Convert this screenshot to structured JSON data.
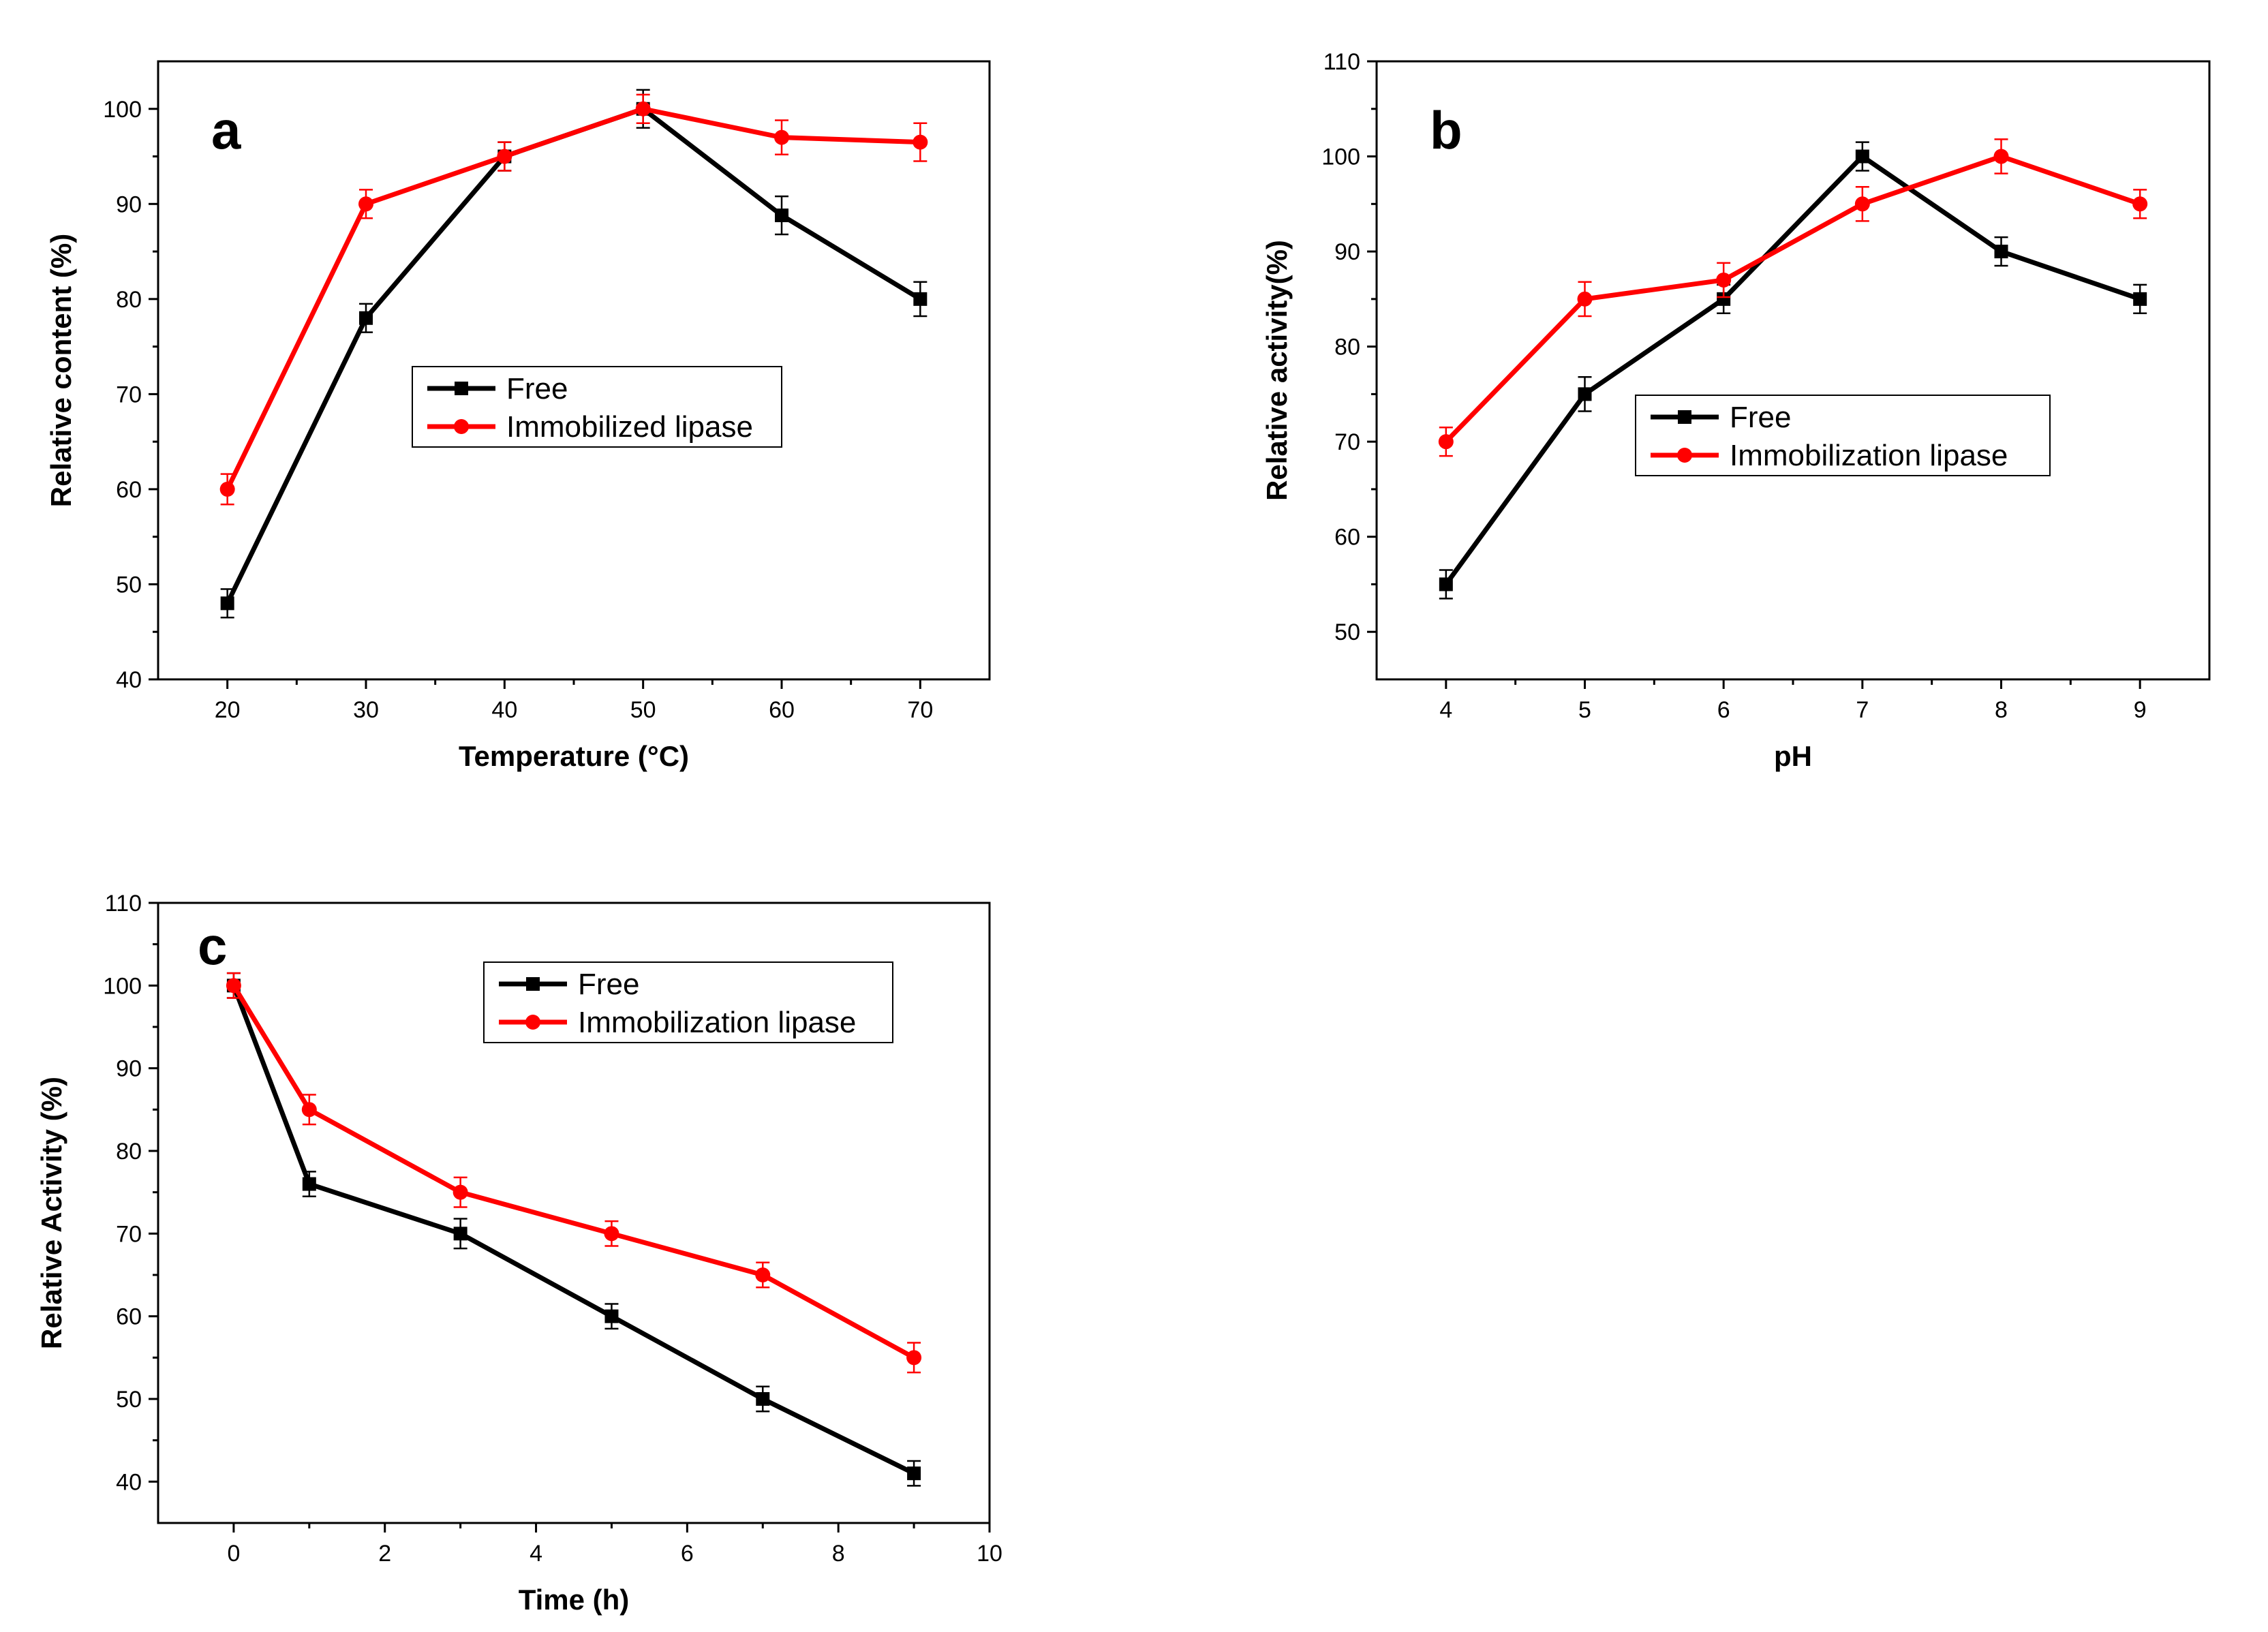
{
  "chart_data": [
    {
      "type": "line",
      "panel_label": "a",
      "xlabel": "Temperature (°C)",
      "ylabel": "Relative content (%)",
      "xlim": [
        15,
        75
      ],
      "ylim": [
        40,
        105
      ],
      "xticks": [
        20,
        30,
        40,
        50,
        60,
        70
      ],
      "yticks": [
        40,
        50,
        60,
        70,
        80,
        90,
        100
      ],
      "legend_position": "center",
      "grid": false,
      "x": [
        20,
        30,
        40,
        50,
        60,
        70
      ],
      "series": [
        {
          "name": "Free",
          "color": "#000000",
          "marker": "square",
          "values": [
            48,
            78,
            95,
            100,
            88.8,
            80
          ],
          "errors": [
            1.5,
            1.5,
            1.5,
            2,
            2,
            1.8
          ]
        },
        {
          "name": "Immobilized lipase",
          "color": "#ff0000",
          "marker": "circle",
          "values": [
            60,
            90,
            95,
            100,
            97,
            96.5
          ],
          "errors": [
            1.6,
            1.5,
            1.5,
            1.5,
            1.8,
            2
          ]
        }
      ]
    },
    {
      "type": "line",
      "panel_label": "b",
      "xlabel": "pH",
      "ylabel": "Relative activity(%)",
      "xlim": [
        3.5,
        9.5
      ],
      "ylim": [
        45,
        110
      ],
      "xticks": [
        4,
        5,
        6,
        7,
        8,
        9
      ],
      "yticks": [
        50,
        60,
        70,
        80,
        90,
        100,
        110
      ],
      "legend_position": "center-right",
      "grid": false,
      "x": [
        4,
        5,
        6,
        7,
        8,
        9
      ],
      "series": [
        {
          "name": "Free",
          "color": "#000000",
          "marker": "square",
          "values": [
            55,
            75,
            85,
            100,
            90,
            85
          ],
          "errors": [
            1.5,
            1.8,
            1.5,
            1.5,
            1.5,
            1.5
          ]
        },
        {
          "name": "Immobilization lipase",
          "color": "#ff0000",
          "marker": "circle",
          "values": [
            70,
            85,
            87,
            95,
            100,
            95
          ],
          "errors": [
            1.5,
            1.8,
            1.8,
            1.8,
            1.8,
            1.5
          ]
        }
      ]
    },
    {
      "type": "line",
      "panel_label": "c",
      "xlabel": "Time (h)",
      "ylabel": "Relative Activity (%)",
      "xlim": [
        -1,
        10
      ],
      "ylim": [
        35,
        110
      ],
      "xticks": [
        0,
        2,
        4,
        6,
        8,
        10
      ],
      "yticks": [
        40,
        50,
        60,
        70,
        80,
        90,
        100,
        110
      ],
      "legend_position": "top-right",
      "grid": false,
      "x": [
        0,
        1,
        3,
        5,
        7,
        9
      ],
      "series": [
        {
          "name": "Free",
          "color": "#000000",
          "marker": "square",
          "values": [
            100,
            76,
            70,
            60,
            50,
            41
          ],
          "errors": [
            1.5,
            1.5,
            1.8,
            1.5,
            1.5,
            1.5
          ]
        },
        {
          "name": "Immobilization lipase",
          "color": "#ff0000",
          "marker": "circle",
          "values": [
            100,
            85,
            75,
            70,
            65,
            55
          ],
          "errors": [
            1.5,
            1.8,
            1.8,
            1.5,
            1.5,
            1.8
          ]
        }
      ]
    }
  ]
}
